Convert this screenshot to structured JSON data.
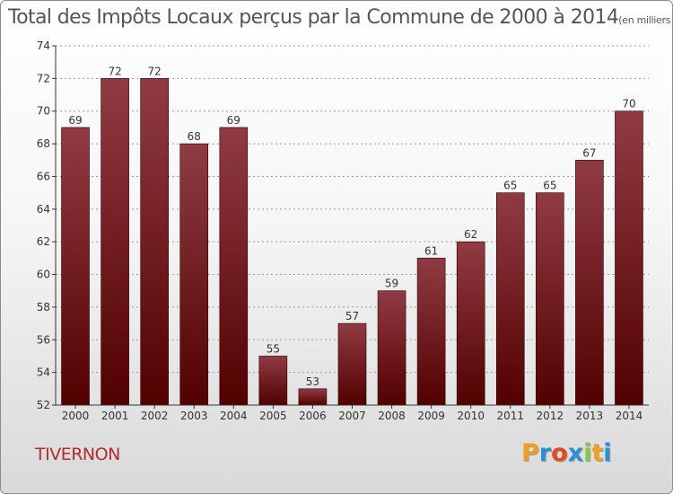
{
  "title": "Total des Impôts Locaux perçus par la Commune de 2000 à 2014",
  "subtitle": "(en milliers d'€)",
  "commune": "TIVERNON",
  "logo": {
    "letters": [
      "P",
      "r",
      "o",
      "x",
      "i",
      "t",
      "i"
    ],
    "colors": [
      "#f0a020",
      "#2a8fd6",
      "#e04a1c",
      "#2a8fd6",
      "#8cc63f",
      "#f0a020",
      "#2a8fd6"
    ]
  },
  "colors": {
    "bar_light": "#903b44",
    "bar_dark": "#520000",
    "axis": "#333333",
    "grid": "#9a9a9a"
  },
  "chart_data": {
    "type": "bar",
    "title": "Total des Impôts Locaux perçus par la Commune de 2000 à 2014",
    "subtitle": "(en milliers d'€)",
    "categories": [
      "2000",
      "2001",
      "2002",
      "2003",
      "2004",
      "2005",
      "2006",
      "2007",
      "2008",
      "2009",
      "2010",
      "2011",
      "2012",
      "2013",
      "2014"
    ],
    "values": [
      69,
      72,
      72,
      68,
      69,
      55,
      53,
      57,
      59,
      61,
      62,
      65,
      65,
      67,
      70
    ],
    "ylim": [
      52,
      74
    ],
    "yticks": [
      52,
      54,
      56,
      58,
      60,
      62,
      64,
      66,
      68,
      70,
      72,
      74
    ],
    "grid": "horizontal-dashed",
    "xlabel": "",
    "ylabel": ""
  }
}
